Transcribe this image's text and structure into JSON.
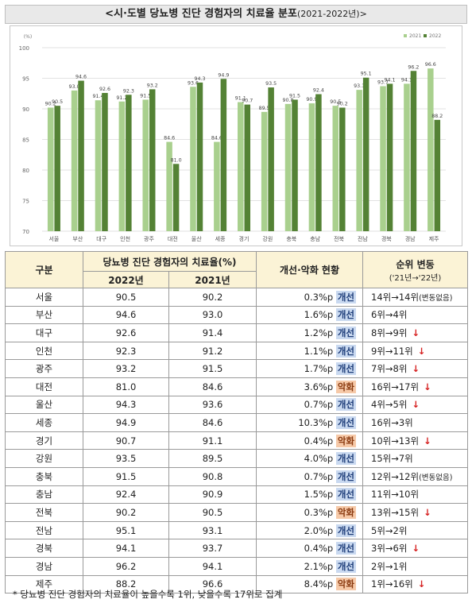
{
  "title": {
    "main": "<시·도별 당뇨병 진단 경험자의 치료율 분포",
    "range": "(2021-2022년)>"
  },
  "colors": {
    "y2021": "#a9d08e",
    "y2022": "#548235"
  },
  "chart_data": {
    "type": "bar",
    "ylabel": "(%)",
    "ylim": [
      70,
      100
    ],
    "yticks": [
      "70",
      "75",
      "80",
      "85",
      "90",
      "95",
      "100"
    ],
    "legend_placement": "top-right",
    "categories": [
      "서울",
      "부산",
      "대구",
      "인천",
      "광주",
      "대전",
      "울산",
      "세종",
      "경기",
      "강원",
      "충북",
      "충남",
      "전북",
      "전남",
      "경북",
      "경남",
      "제주"
    ],
    "series": [
      {
        "name": "2021",
        "values": [
          90.2,
          93.0,
          91.4,
          91.2,
          91.5,
          84.6,
          93.6,
          84.6,
          91.1,
          89.5,
          90.8,
          90.9,
          90.5,
          93.1,
          93.7,
          94.1,
          96.6
        ],
        "labels": [
          "90.2",
          "93.0",
          "91.4",
          "91.2",
          "91.5",
          "84.6",
          "93.6",
          "84.6",
          "91.1",
          "89.5",
          "90.8",
          "90.9",
          "90.5",
          "93.1",
          "93.7",
          "94.1",
          "96.6"
        ]
      },
      {
        "name": "2022",
        "values": [
          90.5,
          94.6,
          92.6,
          92.3,
          93.2,
          81.0,
          94.3,
          94.9,
          90.7,
          93.5,
          91.5,
          92.4,
          90.2,
          95.1,
          94.1,
          96.2,
          88.2
        ],
        "labels": [
          "90.5",
          "94.6",
          "92.6",
          "92.3",
          "93.2",
          "81.0",
          "94.3",
          "94.9",
          "90.7",
          "93.5",
          "91.5",
          "92.4",
          "90.2",
          "95.1",
          "94.1",
          "96.2",
          "88.2"
        ]
      }
    ]
  },
  "table": {
    "headers": {
      "region": "구분",
      "rate": "당뇨병 진단 경험자의 치료율(%)",
      "y2022": "2022년",
      "y2021": "2021년",
      "status": "개선·악화 현황",
      "rank": "순위 변동",
      "rank_sub": "('21년→'22년)"
    },
    "rows": [
      {
        "region": "서울",
        "v2022": "90.5",
        "v2021": "90.2",
        "change": "0.3%p",
        "status": "개선",
        "dir": "up",
        "rank": "14위→14위",
        "note": "(변동없음)",
        "down": ""
      },
      {
        "region": "부산",
        "v2022": "94.6",
        "v2021": "93.0",
        "change": "1.6%p",
        "status": "개선",
        "dir": "up",
        "rank": "6위→4위",
        "note": "",
        "down": ""
      },
      {
        "region": "대구",
        "v2022": "92.6",
        "v2021": "91.4",
        "change": "1.2%p",
        "status": "개선",
        "dir": "up",
        "rank": "8위→9위",
        "note": "",
        "down": "↓"
      },
      {
        "region": "인천",
        "v2022": "92.3",
        "v2021": "91.2",
        "change": "1.1%p",
        "status": "개선",
        "dir": "up",
        "rank": "9위→11위",
        "note": "",
        "down": "↓"
      },
      {
        "region": "광주",
        "v2022": "93.2",
        "v2021": "91.5",
        "change": "1.7%p",
        "status": "개선",
        "dir": "up",
        "rank": "7위→8위",
        "note": "",
        "down": "↓"
      },
      {
        "region": "대전",
        "v2022": "81.0",
        "v2021": "84.6",
        "change": "3.6%p",
        "status": "악화",
        "dir": "down",
        "rank": "16위→17위",
        "note": "",
        "down": "↓"
      },
      {
        "region": "울산",
        "v2022": "94.3",
        "v2021": "93.6",
        "change": "0.7%p",
        "status": "개선",
        "dir": "up",
        "rank": "4위→5위",
        "note": "",
        "down": "↓"
      },
      {
        "region": "세종",
        "v2022": "94.9",
        "v2021": "84.6",
        "change": "10.3%p",
        "status": "개선",
        "dir": "up",
        "rank": "16위→3위",
        "note": "",
        "down": ""
      },
      {
        "region": "경기",
        "v2022": "90.7",
        "v2021": "91.1",
        "change": "0.4%p",
        "status": "악화",
        "dir": "down",
        "rank": "10위→13위",
        "note": "",
        "down": "↓"
      },
      {
        "region": "강원",
        "v2022": "93.5",
        "v2021": "89.5",
        "change": "4.0%p",
        "status": "개선",
        "dir": "up",
        "rank": "15위→7위",
        "note": "",
        "down": ""
      },
      {
        "region": "충북",
        "v2022": "91.5",
        "v2021": "90.8",
        "change": "0.7%p",
        "status": "개선",
        "dir": "up",
        "rank": "12위→12위",
        "note": "(변동없음)",
        "down": ""
      },
      {
        "region": "충남",
        "v2022": "92.4",
        "v2021": "90.9",
        "change": "1.5%p",
        "status": "개선",
        "dir": "up",
        "rank": "11위→10위",
        "note": "",
        "down": ""
      },
      {
        "region": "전북",
        "v2022": "90.2",
        "v2021": "90.5",
        "change": "0.3%p",
        "status": "악화",
        "dir": "down",
        "rank": "13위→15위",
        "note": "",
        "down": "↓"
      },
      {
        "region": "전남",
        "v2022": "95.1",
        "v2021": "93.1",
        "change": "2.0%p",
        "status": "개선",
        "dir": "up",
        "rank": "5위→2위",
        "note": "",
        "down": ""
      },
      {
        "region": "경북",
        "v2022": "94.1",
        "v2021": "93.7",
        "change": "0.4%p",
        "status": "개선",
        "dir": "up",
        "rank": "3위→6위",
        "note": "",
        "down": "↓"
      },
      {
        "region": "경남",
        "v2022": "96.2",
        "v2021": "94.1",
        "change": "2.1%p",
        "status": "개선",
        "dir": "up",
        "rank": "2위→1위",
        "note": "",
        "down": ""
      },
      {
        "region": "제주",
        "v2022": "88.2",
        "v2021": "96.6",
        "change": "8.4%p",
        "status": "악화",
        "dir": "down",
        "rank": "1위→16위",
        "note": "",
        "down": "↓"
      }
    ]
  },
  "footnote": "* 당뇨병 진단 경험자의 치료율이 높을수록 1위, 낮을수록 17위로 집계"
}
